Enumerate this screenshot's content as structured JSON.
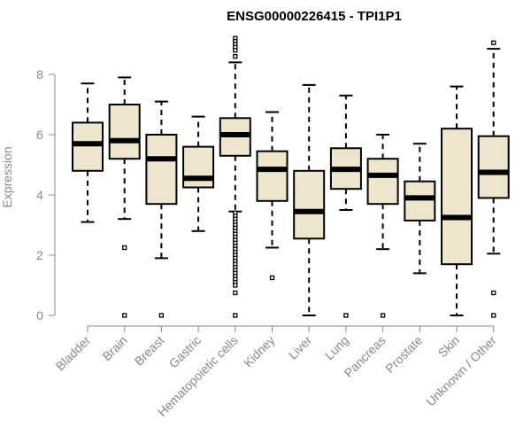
{
  "chart_data": {
    "type": "boxplot",
    "title": "ENSG00000226415 - TPI1P1",
    "xlabel": "",
    "ylabel": "Expression",
    "ylim": [
      0,
      9.4
    ],
    "yticks": [
      0,
      2,
      4,
      6,
      8
    ],
    "grid": false,
    "box_fill": "#ede6cc",
    "categories": [
      "Bladder",
      "Brain",
      "Breast",
      "Gastric",
      "Hematopoietic cells",
      "Kidney",
      "Liver",
      "Lung",
      "Pancreas",
      "Prostate",
      "Skin",
      "Unknown / Other"
    ],
    "boxes": [
      {
        "name": "Bladder",
        "whisker_low": 3.1,
        "q1": 4.8,
        "median": 5.7,
        "q3": 6.4,
        "whisker_high": 7.7,
        "outliers": []
      },
      {
        "name": "Brain",
        "whisker_low": 3.2,
        "q1": 5.2,
        "median": 5.8,
        "q3": 7.0,
        "whisker_high": 7.9,
        "outliers": [
          2.25,
          0.0
        ]
      },
      {
        "name": "Breast",
        "whisker_low": 1.9,
        "q1": 3.7,
        "median": 5.2,
        "q3": 6.0,
        "whisker_high": 7.1,
        "outliers": [
          0.0
        ]
      },
      {
        "name": "Gastric",
        "whisker_low": 2.8,
        "q1": 4.25,
        "median": 4.55,
        "q3": 5.6,
        "whisker_high": 6.6,
        "outliers": []
      },
      {
        "name": "Hematopoietic cells",
        "whisker_low": 3.45,
        "q1": 5.3,
        "median": 6.0,
        "q3": 6.55,
        "whisker_high": 8.4,
        "outliers": [
          9.2,
          9.1,
          9.0,
          8.9,
          8.8,
          8.6,
          3.4,
          3.3,
          3.2,
          3.1,
          3.0,
          2.9,
          2.8,
          2.7,
          2.6,
          2.5,
          2.4,
          2.3,
          2.2,
          2.1,
          2.0,
          1.9,
          1.8,
          1.7,
          1.6,
          1.5,
          1.4,
          1.3,
          1.2,
          1.1,
          1.0,
          0.75,
          0.0
        ]
      },
      {
        "name": "Kidney",
        "whisker_low": 2.25,
        "q1": 3.8,
        "median": 4.85,
        "q3": 5.45,
        "whisker_high": 6.75,
        "outliers": [
          1.25
        ]
      },
      {
        "name": "Liver",
        "whisker_low": 0.0,
        "q1": 2.55,
        "median": 3.45,
        "q3": 4.8,
        "whisker_high": 7.65,
        "outliers": []
      },
      {
        "name": "Lung",
        "whisker_low": 3.5,
        "q1": 4.2,
        "median": 4.85,
        "q3": 5.55,
        "whisker_high": 7.3,
        "outliers": [
          0.0
        ]
      },
      {
        "name": "Pancreas",
        "whisker_low": 2.2,
        "q1": 3.7,
        "median": 4.65,
        "q3": 5.2,
        "whisker_high": 6.0,
        "outliers": [
          0.0
        ]
      },
      {
        "name": "Prostate",
        "whisker_low": 1.4,
        "q1": 3.15,
        "median": 3.9,
        "q3": 4.45,
        "whisker_high": 5.7,
        "outliers": []
      },
      {
        "name": "Skin",
        "whisker_low": 0.0,
        "q1": 1.7,
        "median": 3.25,
        "q3": 6.2,
        "whisker_high": 7.6,
        "outliers": []
      },
      {
        "name": "Unknown / Other",
        "whisker_low": 2.05,
        "q1": 3.9,
        "median": 4.75,
        "q3": 5.95,
        "whisker_high": 8.85,
        "outliers": [
          9.05,
          0.75,
          0.0
        ]
      }
    ]
  }
}
